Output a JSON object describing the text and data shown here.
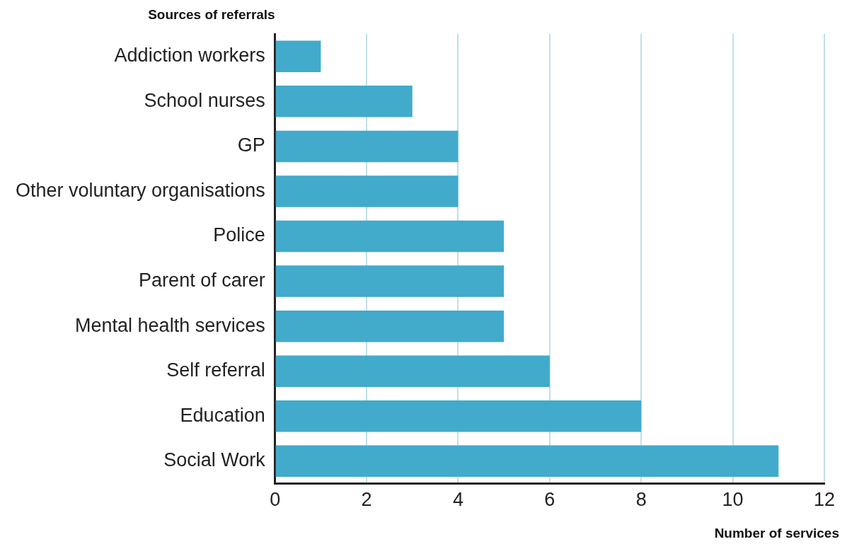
{
  "chart_data": {
    "type": "bar",
    "orientation": "horizontal",
    "categories": [
      "Addiction workers",
      "School nurses",
      "GP",
      "Other voluntary organisations",
      "Police",
      "Parent of carer",
      "Mental health services",
      "Self referral",
      "Education",
      "Social Work"
    ],
    "values": [
      1,
      3,
      4,
      4,
      5,
      5,
      5,
      6,
      8,
      11
    ],
    "color": "#42aacb",
    "xlim": [
      0,
      12
    ],
    "xticks": [
      0,
      2,
      4,
      6,
      8,
      10,
      12
    ],
    "xlabel": "Number of services",
    "ylabel": "Sources of referrals",
    "grid": "x",
    "legend": false
  }
}
